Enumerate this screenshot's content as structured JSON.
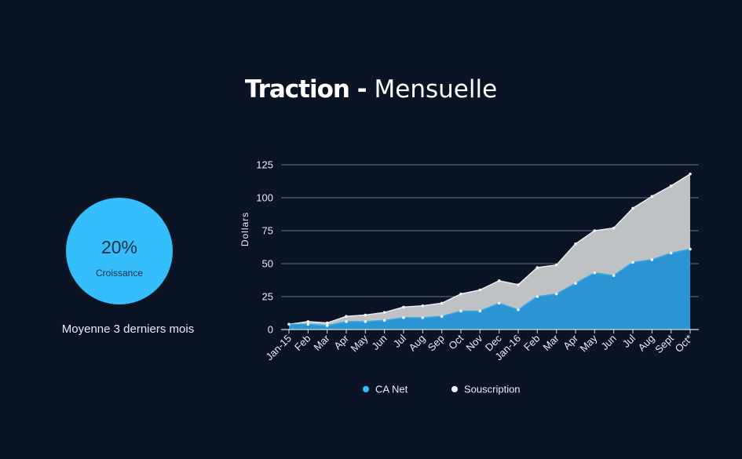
{
  "title": {
    "bold": "Traction -",
    "light": "Mensuelle"
  },
  "kpi": {
    "value": "20%",
    "label": "Croissance",
    "caption": "Moyenne 3 derniers mois",
    "color": "#35bdfc"
  },
  "chart_data": {
    "type": "area",
    "title": "Traction - Mensuelle",
    "xlabel": "",
    "ylabel": "Dollars",
    "ylim": [
      0,
      125
    ],
    "yticks": [
      0,
      25,
      50,
      75,
      100,
      125
    ],
    "grid": true,
    "legend": "bottom",
    "categories": [
      "Jan-15",
      "Feb",
      "Mar",
      "Apr",
      "May",
      "Jun",
      "Jul",
      "Aug",
      "Sep",
      "Oct",
      "Nov",
      "Dec",
      "Jan-16",
      "Feb",
      "Mar",
      "Apr",
      "May",
      "Jun",
      "Jul",
      "Aug",
      "Sept",
      "Oct*"
    ],
    "series": [
      {
        "name": "CA Net",
        "color": "#2b95d4",
        "values": [
          4,
          4,
          3,
          6,
          6,
          7,
          9,
          9,
          10,
          14,
          14,
          20,
          15,
          25,
          27,
          35,
          43,
          41,
          51,
          53,
          58,
          61
        ]
      },
      {
        "name": "Souscription",
        "color": "#c8cbcf",
        "values": [
          4,
          6,
          5,
          10,
          11,
          13,
          17,
          18,
          20,
          27,
          30,
          37,
          34,
          47,
          49,
          65,
          75,
          77,
          92,
          101,
          109,
          118
        ]
      }
    ]
  }
}
